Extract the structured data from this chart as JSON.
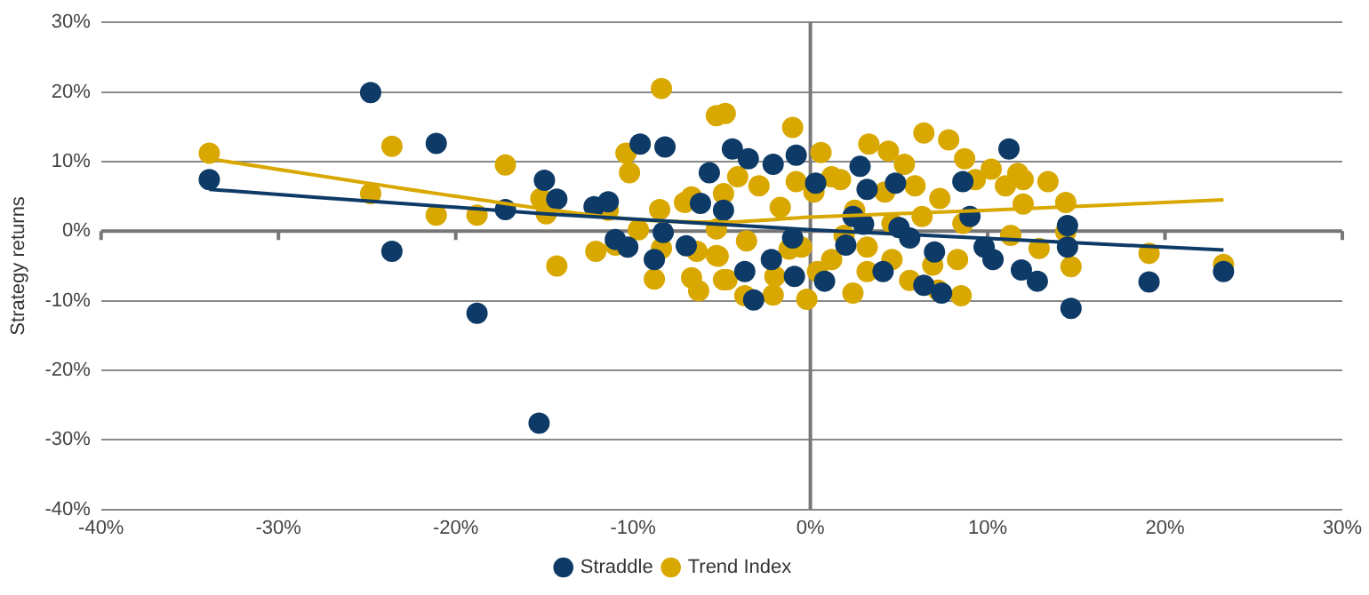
{
  "chart_data": {
    "type": "scatter",
    "ylabel": "Strategy returns",
    "xlim": [
      -40,
      30
    ],
    "xticks": [
      {
        "value": -40,
        "label": "-40%"
      },
      {
        "value": -30,
        "label": "-30%"
      },
      {
        "value": -20,
        "label": "-20%"
      },
      {
        "value": -10,
        "label": "-10%"
      },
      {
        "value": 0,
        "label": "0%"
      },
      {
        "value": 10,
        "label": "10%"
      },
      {
        "value": 20,
        "label": "20%"
      },
      {
        "value": 30,
        "label": "30%"
      }
    ],
    "ylim": [
      -40,
      30
    ],
    "yticks": [
      {
        "value": -40,
        "label": "-40%"
      },
      {
        "value": -30,
        "label": "-30%"
      },
      {
        "value": -20,
        "label": "-20%"
      },
      {
        "value": -10,
        "label": "-10%"
      },
      {
        "value": 0,
        "label": "0%"
      },
      {
        "value": 10,
        "label": "10%"
      },
      {
        "value": 20,
        "label": "20%"
      },
      {
        "value": 30,
        "label": "30%"
      }
    ],
    "grid": "y",
    "legend": "bottom",
    "ref_lines": [
      {
        "axis": "x",
        "value": 0,
        "color": "#777777"
      }
    ],
    "marker": "circle",
    "series": [
      {
        "name": "Straddle",
        "color": "#0d3a66",
        "x": [
          -33.9,
          -24.8,
          -23.6,
          -21.1,
          -18.8,
          -17.2,
          -15.0,
          -15.3,
          -14.3,
          -12.2,
          -11.4,
          -11.0,
          -10.3,
          -9.6,
          -8.2,
          -8.8,
          -8.3,
          -5.7,
          -6.2,
          -7.0,
          -4.4,
          -3.5,
          -2.1,
          -0.8,
          2.8,
          3.2,
          4.8,
          8.6,
          11.2,
          11.9,
          12.8,
          14.7,
          14.5,
          14.5,
          19.1,
          23.3,
          -3.2,
          -0.9,
          -3.7,
          6.4,
          7.4,
          0.8,
          4.1,
          10.3,
          9.8,
          9.0,
          0.3,
          -4.9,
          -2.2,
          5.6,
          2.4,
          5.0,
          2.0,
          7.0,
          3.0,
          -1.0
        ],
        "values": [
          7.4,
          19.9,
          -2.9,
          12.6,
          -11.8,
          3.1,
          7.3,
          -27.6,
          4.6,
          3.5,
          4.2,
          -1.2,
          -2.3,
          12.5,
          12.1,
          -4.1,
          -0.2,
          8.4,
          4.0,
          -2.1,
          11.8,
          10.4,
          9.6,
          10.9,
          9.3,
          6.0,
          6.9,
          7.1,
          11.8,
          -5.6,
          -7.2,
          -11.1,
          -2.3,
          0.8,
          -7.3,
          -5.8,
          -9.9,
          -6.5,
          -5.8,
          -7.8,
          -8.9,
          -7.2,
          -5.8,
          -4.1,
          -2.3,
          2.1,
          6.9,
          3.0,
          -4.1,
          -1.0,
          2.1,
          0.5,
          -2.0,
          -3.0,
          1.0,
          -1.0
        ]
      },
      {
        "name": "Trend Index",
        "color": "#d9a800",
        "x": [
          -33.9,
          -24.8,
          -23.6,
          -21.1,
          -18.8,
          -17.2,
          -15.2,
          -14.9,
          -14.3,
          -12.1,
          -11.4,
          -11.0,
          -10.4,
          -10.2,
          -9.7,
          -8.4,
          -8.5,
          -8.4,
          -8.8,
          -7.1,
          -6.7,
          -6.4,
          -6.7,
          -6.3,
          -5.3,
          -4.8,
          -4.9,
          -5.3,
          -4.9,
          -1.0,
          0.6,
          3.3,
          4.4,
          5.3,
          6.4,
          7.8,
          8.7,
          10.2,
          12.0,
          13.4,
          14.4,
          14.4,
          14.7,
          12.9,
          19.1,
          23.3,
          -0.2,
          2.4,
          5.6,
          7.2,
          8.5,
          -2.1,
          -3.7,
          -4.7,
          -2.0,
          -5.2,
          -2.9,
          -4.1,
          -0.8,
          -1.7,
          1.2,
          1.7,
          0.2,
          2.5,
          4.2,
          5.9,
          7.3,
          9.3,
          11.0,
          11.7,
          12.0,
          11.3,
          8.3,
          6.9,
          4.6,
          3.2,
          1.2,
          -0.5,
          -1.2,
          -3.6,
          -5.3,
          1.9,
          4.6,
          6.3,
          8.6,
          3.2,
          0.4
        ],
        "values": [
          11.2,
          5.4,
          12.2,
          2.3,
          2.3,
          9.5,
          4.7,
          2.5,
          -5.0,
          -2.9,
          3.0,
          -2.0,
          11.2,
          8.4,
          0.2,
          20.5,
          3.1,
          -2.5,
          -6.9,
          4.1,
          4.9,
          -2.9,
          -6.7,
          -8.6,
          16.6,
          16.9,
          5.4,
          -3.5,
          -7.0,
          14.9,
          11.3,
          12.5,
          11.5,
          9.6,
          14.1,
          13.1,
          10.4,
          8.9,
          7.4,
          7.1,
          4.1,
          -0.1,
          -5.1,
          -2.5,
          -3.2,
          -4.8,
          -9.8,
          -8.9,
          -7.1,
          -8.5,
          -9.3,
          -9.2,
          -9.3,
          -7.0,
          -6.5,
          -3.6,
          6.5,
          7.8,
          7.1,
          3.4,
          7.8,
          7.4,
          5.6,
          3.0,
          5.6,
          6.5,
          4.7,
          7.4,
          6.5,
          8.3,
          3.9,
          -0.6,
          -4.1,
          -4.9,
          -4.1,
          -2.3,
          -4.1,
          -2.3,
          -2.6,
          -1.4,
          0.3,
          -0.6,
          1.1,
          2.1,
          1.1,
          -5.8,
          -5.8
        ]
      },
      {
        "type": "line",
        "marker": "none",
        "color": "#0d3a66",
        "x": [
          -33.9,
          -15.0,
          0,
          23.3
        ],
        "values": [
          6.0,
          2.5,
          0.2,
          -2.7
        ]
      },
      {
        "type": "line",
        "marker": "none",
        "color": "#d9a800",
        "x": [
          -33.9,
          -20,
          -10,
          -5,
          0,
          10,
          23.3
        ],
        "values": [
          10.4,
          5.0,
          1.7,
          1.3,
          2.0,
          3.0,
          4.5
        ]
      }
    ]
  }
}
